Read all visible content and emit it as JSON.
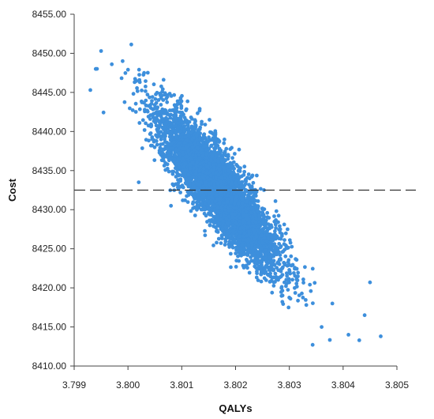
{
  "chart_data": {
    "type": "scatter",
    "title": "",
    "xlabel": "QALYs",
    "ylabel": "Cost",
    "xlim": [
      3.799,
      3.805
    ],
    "ylim": [
      8410.0,
      8455.0
    ],
    "x_ticks": [
      "3.799",
      "3.800",
      "3.801",
      "3.802",
      "3.803",
      "3.804",
      "3.805"
    ],
    "y_ticks": [
      "8410.00",
      "8415.00",
      "8420.00",
      "8425.00",
      "8430.00",
      "8435.00",
      "8440.00",
      "8445.00",
      "8450.00",
      "8455.00"
    ],
    "reference_line": {
      "y": 8432.5,
      "style": "dashed"
    },
    "grid": false,
    "legend": "none",
    "point_color": "#3d8fdc",
    "distribution": {
      "mean_x": 3.8017,
      "mean_y": 8432.5,
      "sd_x": 0.00055,
      "sd_y": 4.9,
      "correlation": -0.87,
      "n": 5000
    },
    "points": [
      [
        3.7993,
        8445.3
      ],
      [
        3.7994,
        8448.0
      ],
      [
        3.7995,
        8450.3
      ],
      [
        3.7997,
        8448.6
      ],
      [
        3.7999,
        8449.0
      ],
      [
        3.8,
        8447.9
      ],
      [
        3.8003,
        8447.5
      ],
      [
        3.8047,
        8413.8
      ],
      [
        3.8043,
        8413.3
      ],
      [
        3.8041,
        8414.0
      ],
      [
        3.8044,
        8416.5
      ],
      [
        3.8045,
        8420.7
      ],
      [
        3.8036,
        8415.0
      ],
      [
        3.8038,
        8418.0
      ],
      [
        3.8002,
        8433.5
      ],
      [
        3.8008,
        8430.5
      ]
    ]
  }
}
